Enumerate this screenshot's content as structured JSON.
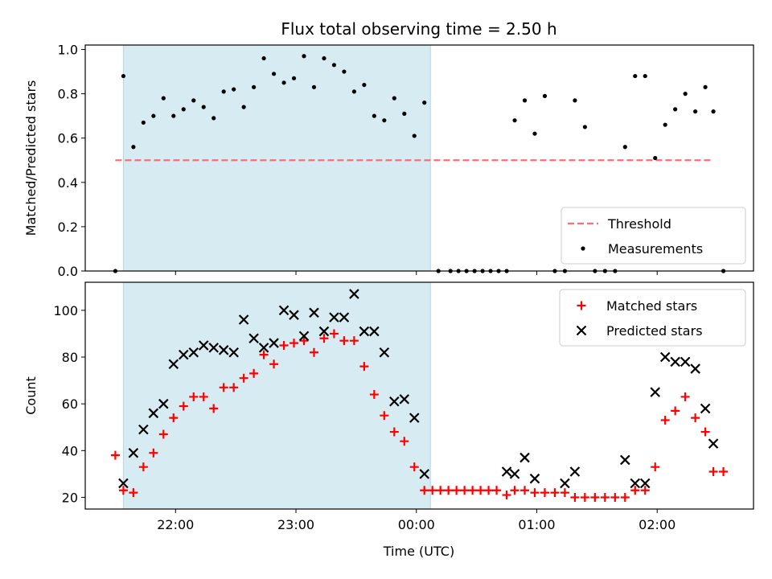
{
  "chart_data": {
    "type": "scatter",
    "title": "Flux total observing time = 2.50 h",
    "shaded_interval": [
      "21:34",
      "00:07"
    ],
    "shade_color": "#add8e6",
    "panels": [
      {
        "id": "ratio",
        "type": "scatter",
        "xlabel": "",
        "ylabel": "Matched/Predicted stars",
        "ylim": [
          0,
          1.02
        ],
        "yticks": [
          "0.0",
          "0.2",
          "0.4",
          "0.6",
          "0.8",
          "1.0"
        ],
        "legend_position": "lower-right",
        "threshold": {
          "name": "Threshold",
          "value": 0.5,
          "x_range": [
            "21:30",
            "02:28"
          ],
          "color": "#ff6e6e",
          "style": "dashed"
        },
        "series": [
          {
            "name": "Measurements",
            "color": "#000000",
            "marker": "dot",
            "points": [
              [
                "21:30",
                0.0
              ],
              [
                "21:34",
                0.88
              ],
              [
                "21:39",
                0.56
              ],
              [
                "21:44",
                0.67
              ],
              [
                "21:49",
                0.7
              ],
              [
                "21:54",
                0.78
              ],
              [
                "21:59",
                0.7
              ],
              [
                "22:04",
                0.73
              ],
              [
                "22:09",
                0.77
              ],
              [
                "22:14",
                0.74
              ],
              [
                "22:19",
                0.69
              ],
              [
                "22:24",
                0.81
              ],
              [
                "22:29",
                0.82
              ],
              [
                "22:34",
                0.74
              ],
              [
                "22:39",
                0.83
              ],
              [
                "22:44",
                0.96
              ],
              [
                "22:49",
                0.89
              ],
              [
                "22:54",
                0.85
              ],
              [
                "22:59",
                0.87
              ],
              [
                "23:04",
                0.97
              ],
              [
                "23:09",
                0.83
              ],
              [
                "23:14",
                0.96
              ],
              [
                "23:19",
                0.93
              ],
              [
                "23:24",
                0.9
              ],
              [
                "23:29",
                0.81
              ],
              [
                "23:34",
                0.84
              ],
              [
                "23:39",
                0.7
              ],
              [
                "23:44",
                0.68
              ],
              [
                "23:49",
                0.78
              ],
              [
                "23:54",
                0.71
              ],
              [
                "23:59",
                0.61
              ],
              [
                "00:04",
                0.76
              ],
              [
                "00:11",
                0.0
              ],
              [
                "00:17",
                0.0
              ],
              [
                "00:21",
                0.0
              ],
              [
                "00:25",
                0.0
              ],
              [
                "00:29",
                0.0
              ],
              [
                "00:33",
                0.0
              ],
              [
                "00:37",
                0.0
              ],
              [
                "00:41",
                0.0
              ],
              [
                "00:45",
                0.0
              ],
              [
                "00:49",
                0.68
              ],
              [
                "00:54",
                0.77
              ],
              [
                "00:59",
                0.62
              ],
              [
                "01:04",
                0.79
              ],
              [
                "01:09",
                0.0
              ],
              [
                "01:14",
                0.0
              ],
              [
                "01:19",
                0.77
              ],
              [
                "01:24",
                0.65
              ],
              [
                "01:29",
                0.0
              ],
              [
                "01:34",
                0.0
              ],
              [
                "01:39",
                0.0
              ],
              [
                "01:44",
                0.56
              ],
              [
                "01:49",
                0.88
              ],
              [
                "01:54",
                0.88
              ],
              [
                "01:59",
                0.51
              ],
              [
                "02:04",
                0.66
              ],
              [
                "02:09",
                0.73
              ],
              [
                "02:14",
                0.8
              ],
              [
                "02:19",
                0.72
              ],
              [
                "02:24",
                0.83
              ],
              [
                "02:28",
                0.72
              ],
              [
                "02:33",
                0.0
              ]
            ]
          }
        ]
      },
      {
        "id": "counts",
        "type": "scatter",
        "xlabel": "Time (UTC)",
        "ylabel": "Count",
        "ylim": [
          15,
          112
        ],
        "yticks": [
          "20",
          "40",
          "60",
          "80",
          "100"
        ],
        "legend_position": "upper-right",
        "series": [
          {
            "name": "Matched stars",
            "color": "#ff0000",
            "marker": "plus",
            "points": [
              [
                "21:30",
                38
              ],
              [
                "21:34",
                23
              ],
              [
                "21:39",
                22
              ],
              [
                "21:44",
                33
              ],
              [
                "21:49",
                39
              ],
              [
                "21:54",
                47
              ],
              [
                "21:59",
                54
              ],
              [
                "22:04",
                59
              ],
              [
                "22:09",
                63
              ],
              [
                "22:14",
                63
              ],
              [
                "22:19",
                58
              ],
              [
                "22:24",
                67
              ],
              [
                "22:29",
                67
              ],
              [
                "22:34",
                71
              ],
              [
                "22:39",
                73
              ],
              [
                "22:44",
                81
              ],
              [
                "22:49",
                77
              ],
              [
                "22:54",
                85
              ],
              [
                "22:59",
                86
              ],
              [
                "23:04",
                87
              ],
              [
                "23:09",
                82
              ],
              [
                "23:14",
                88
              ],
              [
                "23:19",
                90
              ],
              [
                "23:24",
                87
              ],
              [
                "23:29",
                87
              ],
              [
                "23:34",
                76
              ],
              [
                "23:39",
                64
              ],
              [
                "23:44",
                55
              ],
              [
                "23:49",
                48
              ],
              [
                "23:54",
                44
              ],
              [
                "23:59",
                33
              ],
              [
                "00:04",
                23
              ],
              [
                "00:08",
                23
              ],
              [
                "00:12",
                23
              ],
              [
                "00:16",
                23
              ],
              [
                "00:20",
                23
              ],
              [
                "00:24",
                23
              ],
              [
                "00:28",
                23
              ],
              [
                "00:32",
                23
              ],
              [
                "00:36",
                23
              ],
              [
                "00:40",
                23
              ],
              [
                "00:45",
                21
              ],
              [
                "00:49",
                23
              ],
              [
                "00:54",
                23
              ],
              [
                "00:59",
                22
              ],
              [
                "01:04",
                22
              ],
              [
                "01:09",
                22
              ],
              [
                "01:14",
                22
              ],
              [
                "01:19",
                20
              ],
              [
                "01:24",
                20
              ],
              [
                "01:29",
                20
              ],
              [
                "01:34",
                20
              ],
              [
                "01:39",
                20
              ],
              [
                "01:44",
                20
              ],
              [
                "01:49",
                23
              ],
              [
                "01:54",
                23
              ],
              [
                "01:59",
                33
              ],
              [
                "02:04",
                53
              ],
              [
                "02:09",
                57
              ],
              [
                "02:14",
                63
              ],
              [
                "02:19",
                54
              ],
              [
                "02:24",
                48
              ],
              [
                "02:28",
                31
              ],
              [
                "02:33",
                31
              ]
            ]
          },
          {
            "name": "Predicted stars",
            "color": "#000000",
            "marker": "x",
            "points": [
              [
                "21:34",
                26
              ],
              [
                "21:39",
                39
              ],
              [
                "21:44",
                49
              ],
              [
                "21:49",
                56
              ],
              [
                "21:54",
                60
              ],
              [
                "21:59",
                77
              ],
              [
                "22:04",
                81
              ],
              [
                "22:09",
                82
              ],
              [
                "22:14",
                85
              ],
              [
                "22:19",
                84
              ],
              [
                "22:24",
                83
              ],
              [
                "22:29",
                82
              ],
              [
                "22:34",
                96
              ],
              [
                "22:39",
                88
              ],
              [
                "22:44",
                84
              ],
              [
                "22:49",
                86
              ],
              [
                "22:54",
                100
              ],
              [
                "22:59",
                98
              ],
              [
                "23:04",
                89
              ],
              [
                "23:09",
                99
              ],
              [
                "23:14",
                91
              ],
              [
                "23:19",
                97
              ],
              [
                "23:24",
                97
              ],
              [
                "23:29",
                107
              ],
              [
                "23:34",
                91
              ],
              [
                "23:39",
                91
              ],
              [
                "23:44",
                82
              ],
              [
                "23:49",
                61
              ],
              [
                "23:54",
                62
              ],
              [
                "23:59",
                54
              ],
              [
                "00:04",
                30
              ],
              [
                "00:45",
                31
              ],
              [
                "00:49",
                30
              ],
              [
                "00:54",
                37
              ],
              [
                "00:59",
                28
              ],
              [
                "01:14",
                26
              ],
              [
                "01:19",
                31
              ],
              [
                "01:44",
                36
              ],
              [
                "01:49",
                26
              ],
              [
                "01:54",
                26
              ],
              [
                "01:59",
                65
              ],
              [
                "02:04",
                80
              ],
              [
                "02:09",
                78
              ],
              [
                "02:14",
                78
              ],
              [
                "02:19",
                75
              ],
              [
                "02:24",
                58
              ],
              [
                "02:28",
                43
              ]
            ]
          }
        ]
      }
    ],
    "x_axis": {
      "label": "Time (UTC)",
      "ticks": [
        "22:00",
        "23:00",
        "00:00",
        "01:00",
        "02:00"
      ],
      "grid": false
    }
  }
}
